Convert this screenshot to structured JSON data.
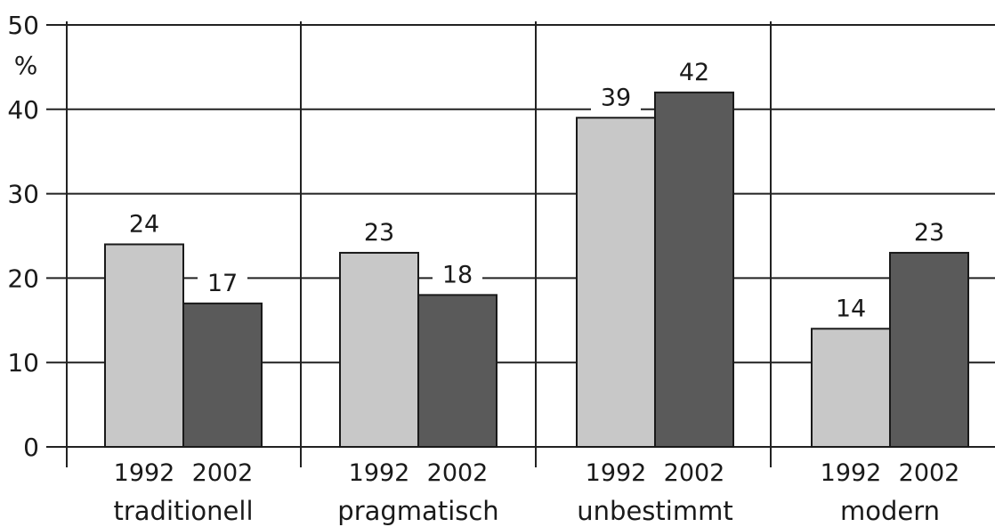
{
  "chart_data": {
    "type": "bar",
    "categories": [
      "traditionell",
      "pragmatisch",
      "unbestimmt",
      "modern"
    ],
    "series": [
      {
        "values": [
          24,
          23,
          39,
          14
        ],
        "year_label": "1992",
        "color": "#c8c8c8"
      },
      {
        "values": [
          17,
          18,
          42,
          23
        ],
        "year_label": "2002",
        "color": "#5a5a5a"
      }
    ],
    "ylabel": "%",
    "ylim": [
      0,
      50
    ],
    "yticks": [
      0,
      10,
      20,
      30,
      40,
      50
    ],
    "grid": true,
    "data_labels": true,
    "legend": "none"
  }
}
